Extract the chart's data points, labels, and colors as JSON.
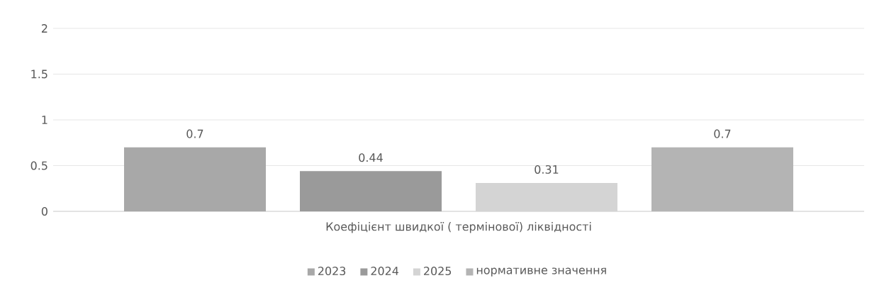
{
  "chart_data": {
    "type": "bar",
    "categories": [
      "Коефіцієнт швидкої ( термінової) ліквідності"
    ],
    "series": [
      {
        "name": "2023",
        "color": "#a8a8a8",
        "values": [
          0.7
        ]
      },
      {
        "name": "2024",
        "color": "#9a9a9a",
        "values": [
          0.44
        ]
      },
      {
        "name": "2025",
        "color": "#d4d4d4",
        "values": [
          0.31
        ]
      },
      {
        "name": "нормативне значення",
        "color": "#b4b4b4",
        "values": [
          0.7
        ]
      }
    ],
    "ylim": [
      0,
      2
    ],
    "yticks": [
      0,
      0.5,
      1,
      1.5,
      2
    ],
    "grid": "y",
    "legend": "bottom",
    "data_labels": true
  }
}
